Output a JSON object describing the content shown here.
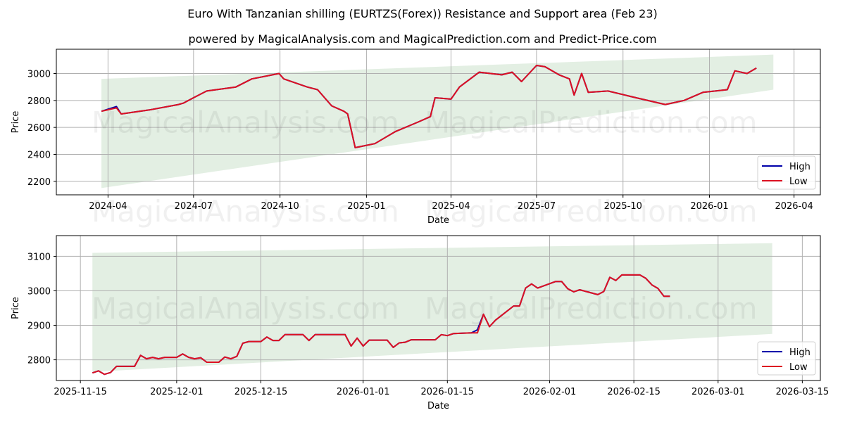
{
  "header": {
    "title": "Euro With Tanzanian shilling (EURTZS(Forex)) Resistance and Support area (Feb 23)",
    "subtitle": "powered by MagicalAnalysis.com and MagicalPrediction.com and Predict-Price.com"
  },
  "watermarks": [
    "MagicalAnalysis.com",
    "MagicalPrediction.com"
  ],
  "colors": {
    "high": "#0000aa",
    "low": "#dd1122",
    "band": "#e3efe3",
    "grid": "#b0b0b0"
  },
  "chart_data": [
    {
      "type": "line",
      "title": "Euro With Tanzanian shilling (EURTZS(Forex)) Resistance and Support area (Feb 23)",
      "xlabel": "Date",
      "ylabel": "Price",
      "ylim": [
        2100,
        3180
      ],
      "grid": true,
      "legend": {
        "position": "lower right",
        "entries": [
          "High",
          "Low"
        ]
      },
      "x_ticks": [
        "2024-04",
        "2024-07",
        "2024-10",
        "2025-01",
        "2025-04",
        "2025-07",
        "2025-10",
        "2026-01",
        "2026-04"
      ],
      "y_ticks": [
        2200,
        2400,
        2600,
        2800,
        3000
      ],
      "band": {
        "x_start": "2024-03-25",
        "x_end": "2026-03-10",
        "upper": [
          2960,
          3140
        ],
        "lower": [
          2150,
          2880
        ]
      },
      "x": [
        "2024-03-25",
        "2024-04-10",
        "2024-04-15",
        "2024-05-15",
        "2024-06-15",
        "2024-06-20",
        "2024-07-01",
        "2024-07-15",
        "2024-08-15",
        "2024-09-01",
        "2024-09-30",
        "2024-10-05",
        "2024-10-30",
        "2024-11-10",
        "2024-11-25",
        "2024-12-08",
        "2024-12-12",
        "2024-12-20",
        "2025-01-10",
        "2025-02-01",
        "2025-02-25",
        "2025-03-10",
        "2025-03-15",
        "2025-04-01",
        "2025-04-10",
        "2025-05-01",
        "2025-05-25",
        "2025-06-05",
        "2025-06-15",
        "2025-07-01",
        "2025-07-10",
        "2025-07-25",
        "2025-08-05",
        "2025-08-10",
        "2025-08-18",
        "2025-08-25",
        "2025-09-15",
        "2025-10-15",
        "2025-11-15",
        "2025-12-05",
        "2025-12-25",
        "2026-01-20",
        "2026-01-28",
        "2026-02-10",
        "2026-02-20"
      ],
      "series": [
        {
          "name": "High",
          "values": [
            2720,
            2755,
            2700,
            2730,
            2770,
            2780,
            2820,
            2870,
            2900,
            2960,
            3000,
            2960,
            2900,
            2880,
            2760,
            2720,
            2700,
            2450,
            2480,
            2570,
            2640,
            2680,
            2820,
            2810,
            2900,
            3010,
            2990,
            3010,
            2940,
            3060,
            3050,
            2990,
            2960,
            2840,
            3000,
            2860,
            2870,
            2820,
            2770,
            2800,
            2860,
            2880,
            3020,
            3000,
            3040
          ]
        },
        {
          "name": "Low",
          "values": [
            2720,
            2745,
            2700,
            2730,
            2770,
            2780,
            2820,
            2870,
            2900,
            2960,
            3000,
            2960,
            2900,
            2880,
            2760,
            2720,
            2700,
            2450,
            2480,
            2570,
            2640,
            2680,
            2820,
            2810,
            2900,
            3010,
            2990,
            3010,
            2940,
            3060,
            3050,
            2990,
            2960,
            2840,
            3000,
            2860,
            2870,
            2820,
            2770,
            2800,
            2860,
            2880,
            3020,
            3000,
            3040
          ]
        }
      ]
    },
    {
      "type": "line",
      "xlabel": "Date",
      "ylabel": "Price",
      "ylim": [
        2740,
        3160
      ],
      "grid": true,
      "legend": {
        "position": "lower right",
        "entries": [
          "High",
          "Low"
        ]
      },
      "x_ticks": [
        "2025-11-15",
        "2025-12-01",
        "2025-12-15",
        "2026-01-01",
        "2026-01-15",
        "2026-02-01",
        "2026-02-15",
        "2026-03-01",
        "2026-03-15"
      ],
      "y_ticks": [
        2800,
        2900,
        3000,
        3100
      ],
      "band": {
        "x_start": "2025-11-17",
        "x_end": "2026-03-10",
        "upper": [
          3110,
          3138
        ],
        "lower": [
          2765,
          2875
        ]
      },
      "x": [
        "2025-11-17",
        "2025-11-18",
        "2025-11-19",
        "2025-11-20",
        "2025-11-21",
        "2025-11-22",
        "2025-11-24",
        "2025-11-25",
        "2025-11-26",
        "2025-11-27",
        "2025-11-28",
        "2025-11-29",
        "2025-12-01",
        "2025-12-02",
        "2025-12-03",
        "2025-12-04",
        "2025-12-05",
        "2025-12-06",
        "2025-12-08",
        "2025-12-09",
        "2025-12-10",
        "2025-12-11",
        "2025-12-12",
        "2025-12-13",
        "2025-12-15",
        "2025-12-16",
        "2025-12-17",
        "2025-12-18",
        "2025-12-19",
        "2025-12-20",
        "2025-12-22",
        "2025-12-23",
        "2025-12-24",
        "2025-12-29",
        "2025-12-30",
        "2025-12-31",
        "2026-01-01",
        "2026-01-02",
        "2026-01-05",
        "2026-01-06",
        "2026-01-07",
        "2026-01-08",
        "2026-01-09",
        "2026-01-12",
        "2026-01-13",
        "2026-01-14",
        "2026-01-15",
        "2026-01-16",
        "2026-01-19",
        "2026-01-20",
        "2026-01-21",
        "2026-01-22",
        "2026-01-23",
        "2026-01-26",
        "2026-01-27",
        "2026-01-28",
        "2026-01-29",
        "2026-01-30",
        "2026-02-02",
        "2026-02-03",
        "2026-02-04",
        "2026-02-05",
        "2026-02-06",
        "2026-02-09",
        "2026-02-10",
        "2026-02-11",
        "2026-02-12",
        "2026-02-13",
        "2026-02-16",
        "2026-02-17",
        "2026-02-18",
        "2026-02-19",
        "2026-02-20",
        "2026-02-21"
      ],
      "series": [
        {
          "name": "High",
          "values": [
            2762,
            2768,
            2758,
            2763,
            2781,
            2781,
            2781,
            2813,
            2803,
            2807,
            2803,
            2807,
            2807,
            2817,
            2807,
            2803,
            2806,
            2793,
            2793,
            2808,
            2803,
            2810,
            2848,
            2853,
            2853,
            2866,
            2856,
            2856,
            2873,
            2873,
            2873,
            2856,
            2873,
            2873,
            2840,
            2863,
            2840,
            2857,
            2857,
            2836,
            2849,
            2851,
            2858,
            2858,
            2858,
            2873,
            2870,
            2876,
            2878,
            2887,
            2932,
            2896,
            2915,
            2956,
            2956,
            3008,
            3020,
            3008,
            3027,
            3027,
            3006,
            2997,
            3003,
            2989,
            2998,
            3039,
            3030,
            3046,
            3046,
            3036,
            3017,
            3007,
            2984,
            2984
          ]
        },
        {
          "name": "Low",
          "values": [
            2762,
            2768,
            2758,
            2763,
            2781,
            2781,
            2781,
            2813,
            2803,
            2807,
            2803,
            2807,
            2807,
            2817,
            2807,
            2803,
            2806,
            2793,
            2793,
            2808,
            2803,
            2810,
            2848,
            2853,
            2853,
            2866,
            2856,
            2856,
            2873,
            2873,
            2873,
            2856,
            2873,
            2873,
            2840,
            2863,
            2840,
            2857,
            2857,
            2836,
            2849,
            2851,
            2858,
            2858,
            2858,
            2873,
            2870,
            2876,
            2878,
            2878,
            2932,
            2896,
            2915,
            2956,
            2956,
            3008,
            3020,
            3008,
            3027,
            3027,
            3006,
            2997,
            3003,
            2989,
            2998,
            3039,
            3030,
            3046,
            3046,
            3036,
            3017,
            3007,
            2984,
            2984
          ]
        }
      ]
    }
  ]
}
